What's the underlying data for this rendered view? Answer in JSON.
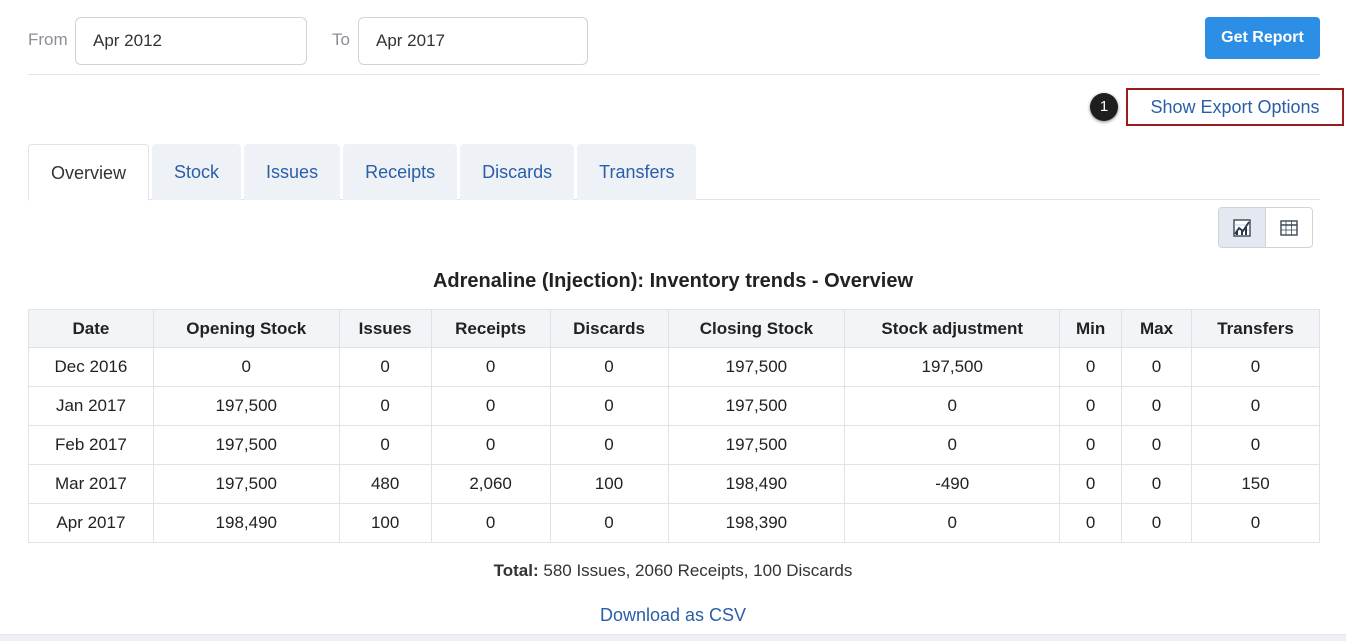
{
  "filters": {
    "from_label": "From",
    "from_value": "Apr 2012",
    "to_label": "To",
    "to_value": "Apr 2017",
    "get_report_label": "Get Report"
  },
  "export": {
    "marker": "1",
    "label": "Show Export Options"
  },
  "tabs": [
    {
      "label": "Overview",
      "active": true
    },
    {
      "label": "Stock"
    },
    {
      "label": "Issues"
    },
    {
      "label": "Receipts"
    },
    {
      "label": "Discards"
    },
    {
      "label": "Transfers"
    }
  ],
  "view_toggle": {
    "chart_icon": "chart-icon",
    "table_icon": "table-icon"
  },
  "report": {
    "title": "Adrenaline (Injection): Inventory trends - Overview",
    "columns": [
      "Date",
      "Opening Stock",
      "Issues",
      "Receipts",
      "Discards",
      "Closing Stock",
      "Stock adjustment",
      "Min",
      "Max",
      "Transfers"
    ],
    "rows": [
      [
        "Dec 2016",
        "0",
        "0",
        "0",
        "0",
        "197,500",
        "197,500",
        "0",
        "0",
        "0"
      ],
      [
        "Jan 2017",
        "197,500",
        "0",
        "0",
        "0",
        "197,500",
        "0",
        "0",
        "0",
        "0"
      ],
      [
        "Feb 2017",
        "197,500",
        "0",
        "0",
        "0",
        "197,500",
        "0",
        "0",
        "0",
        "0"
      ],
      [
        "Mar 2017",
        "197,500",
        "480",
        "2,060",
        "100",
        "198,490",
        "-490",
        "0",
        "0",
        "150"
      ],
      [
        "Apr 2017",
        "198,490",
        "100",
        "0",
        "0",
        "198,390",
        "0",
        "0",
        "0",
        "0"
      ]
    ],
    "total_label": "Total:",
    "total_text": " 580 Issues, 2060 Receipts, 100 Discards",
    "download_label": "Download as CSV"
  },
  "colors": {
    "accent": "#2d8ee6",
    "link": "#2a5ea8",
    "highlight_border": "#9a1c1c"
  }
}
